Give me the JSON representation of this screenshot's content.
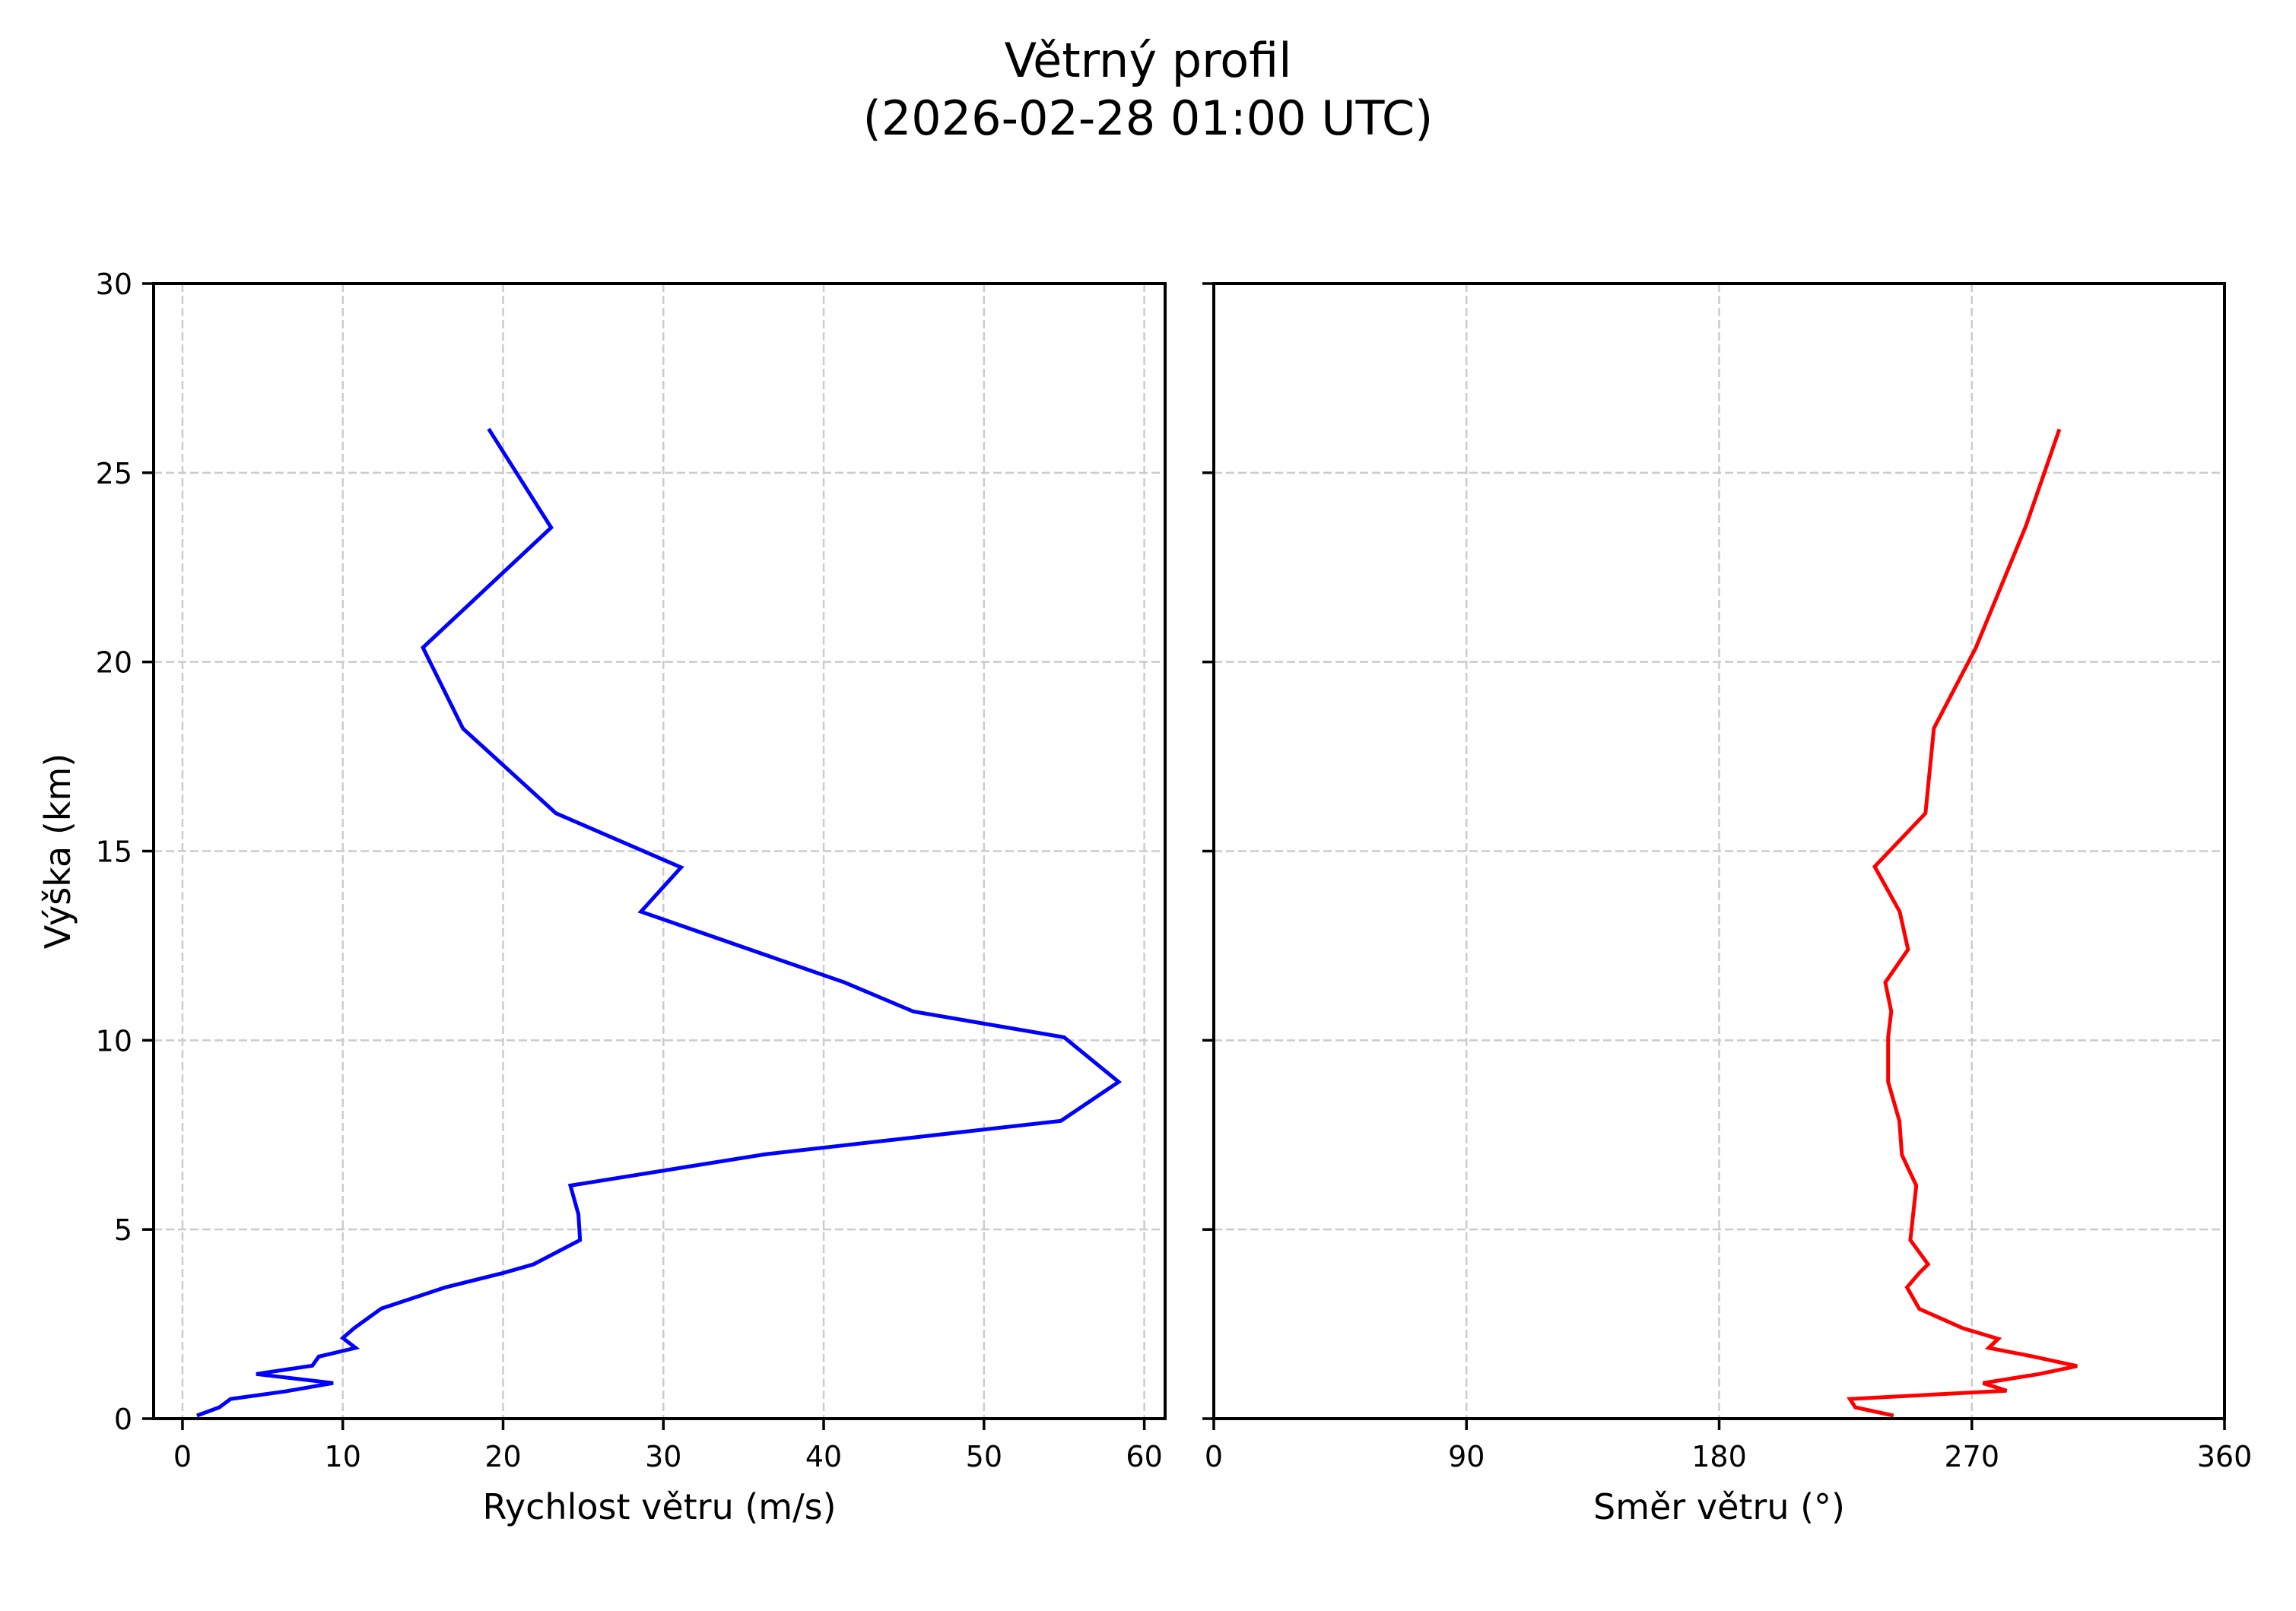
{
  "figure": {
    "title_line1": "Větrný profil",
    "title_line2": "(2026-02-28 01:00 UTC)"
  },
  "chart_data": [
    {
      "type": "line",
      "panel": "left",
      "title": "",
      "xlabel": "Rychlost větru (m/s)",
      "ylabel": "Výška (km)",
      "xlim": [
        -1.8,
        61.3
      ],
      "ylim": [
        0,
        30
      ],
      "xticks": [
        0,
        10,
        20,
        30,
        40,
        50,
        60
      ],
      "yticks": [
        0,
        5,
        10,
        15,
        20,
        25,
        30
      ],
      "grid": true,
      "grid_style": "dashed",
      "series": [
        {
          "name": "Rychlost větru",
          "color": "#0000ff",
          "x": [
            0.9,
            2.3,
            3.0,
            6.4,
            9.4,
            4.6,
            8.1,
            8.5,
            10.8,
            10.0,
            10.7,
            12.4,
            16.4,
            20.0,
            21.9,
            24.8,
            24.7,
            24.2,
            36.4,
            54.8,
            58.4,
            55.0,
            45.6,
            41.3,
            28.6,
            31.1,
            23.3,
            17.5,
            15.0,
            23.0,
            19.1
          ],
          "y": [
            0.08,
            0.3,
            0.52,
            0.72,
            0.94,
            1.18,
            1.4,
            1.64,
            1.87,
            2.13,
            2.39,
            2.91,
            3.47,
            3.85,
            4.08,
            4.72,
            5.4,
            6.16,
            6.99,
            7.87,
            8.9,
            10.08,
            10.76,
            11.53,
            13.4,
            14.57,
            16.0,
            18.24,
            20.38,
            23.55,
            26.16
          ]
        }
      ]
    },
    {
      "type": "line",
      "panel": "right",
      "title": "",
      "xlabel": "Směr větru (°)",
      "ylabel": "",
      "xlim": [
        0,
        360
      ],
      "ylim": [
        0,
        30
      ],
      "xticks": [
        0,
        90,
        180,
        270,
        360
      ],
      "yticks": [
        0,
        5,
        10,
        15,
        20,
        25,
        30
      ],
      "ytick_labels_visible": false,
      "grid": true,
      "grid_style": "dashed",
      "series": [
        {
          "name": "Směr větru",
          "color": "#ff0000",
          "x": [
            242.1,
            228.5,
            226.6,
            282.4,
            274.0,
            294.0,
            307.5,
            292.0,
            276.0,
            279.4,
            266.9,
            251.3,
            246.9,
            251.3,
            254.4,
            248.1,
            249.1,
            250.2,
            245.1,
            244.2,
            240.2,
            240.2,
            241.3,
            239.2,
            247.3,
            244.3,
            235.4,
            253.5,
            256.5,
            271.4,
            289.3,
            301.2
          ],
          "y": [
            0.08,
            0.3,
            0.52,
            0.74,
            0.94,
            1.18,
            1.39,
            1.64,
            1.87,
            2.11,
            2.39,
            2.9,
            3.47,
            3.85,
            4.08,
            4.72,
            5.4,
            6.16,
            6.97,
            7.87,
            8.9,
            10.08,
            10.76,
            11.53,
            12.4,
            13.4,
            14.59,
            16.0,
            18.25,
            20.37,
            23.6,
            26.15
          ]
        }
      ]
    }
  ],
  "style": {
    "axis_color": "#000000",
    "grid_color": "#cccccc",
    "background": "#ffffff"
  }
}
